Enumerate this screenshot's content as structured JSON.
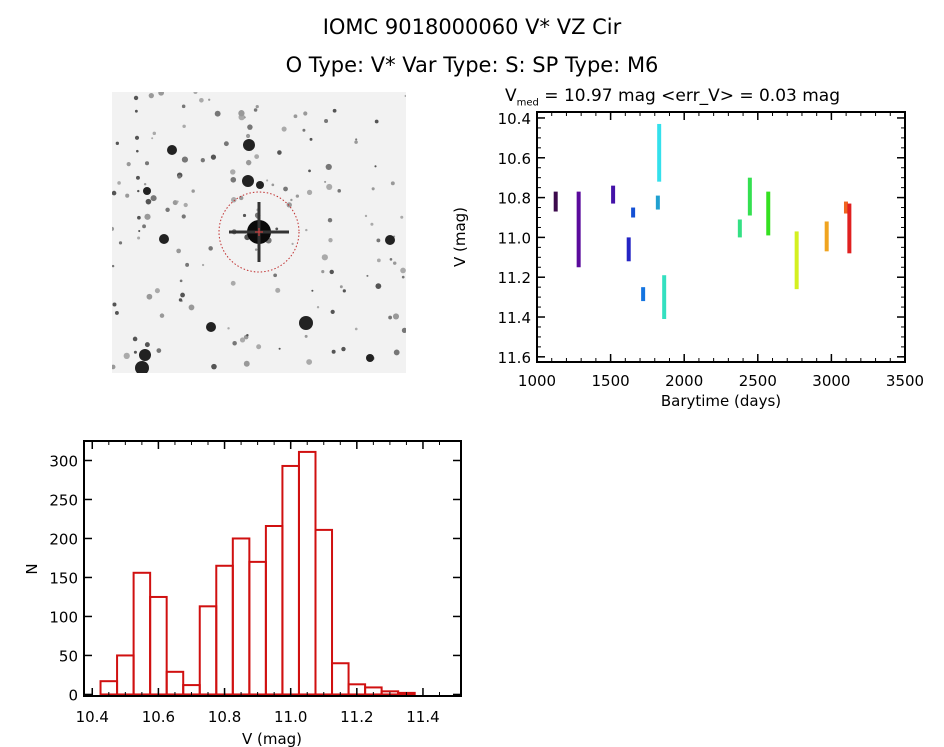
{
  "header": {
    "title": "IOMC 9018000060    V* VZ Cir",
    "subtitle": "O Type: V*  Var Type: S:  SP Type: M6"
  },
  "lightcurve_title": {
    "v": "V",
    "sub": "med",
    "rest": " = 10.97 mag <err_V> = 0.03 mag"
  },
  "chart_data": [
    {
      "type": "scatter",
      "title": "V_med = 10.97 mag <err_V> = 0.03 mag",
      "xlabel": "Barytime (days)",
      "ylabel": "V (mag)",
      "xlim": [
        1000,
        3500
      ],
      "ylim": [
        11.626,
        10.37
      ],
      "y_inverted": true,
      "xticks": [
        "1000",
        "1500",
        "2000",
        "2500",
        "3000",
        "3500"
      ],
      "yticks": [
        "10.4",
        "10.6",
        "10.8",
        "11.0",
        "11.2",
        "11.4",
        "11.6"
      ],
      "series": [
        {
          "x": 1127,
          "ymin": 10.77,
          "ymax": 10.87,
          "color": "#3c0a4c"
        },
        {
          "x": 1283,
          "ymin": 10.77,
          "ymax": 11.15,
          "color": "#5a0a9c"
        },
        {
          "x": 1517,
          "ymin": 10.74,
          "ymax": 10.83,
          "color": "#4412a8"
        },
        {
          "x": 1623,
          "ymin": 11.0,
          "ymax": 11.12,
          "color": "#2424c4"
        },
        {
          "x": 1653,
          "ymin": 10.85,
          "ymax": 10.9,
          "color": "#1450d4"
        },
        {
          "x": 1721,
          "ymin": 11.25,
          "ymax": 11.32,
          "color": "#1474e0"
        },
        {
          "x": 1821,
          "ymin": 10.79,
          "ymax": 10.86,
          "color": "#20a0d0"
        },
        {
          "x": 1830,
          "ymin": 10.43,
          "ymax": 10.72,
          "color": "#34e0ec"
        },
        {
          "x": 1864,
          "ymin": 11.19,
          "ymax": 11.41,
          "color": "#34e0c0"
        },
        {
          "x": 2378,
          "ymin": 10.91,
          "ymax": 11.0,
          "color": "#34e084"
        },
        {
          "x": 2446,
          "ymin": 10.7,
          "ymax": 10.89,
          "color": "#34e050"
        },
        {
          "x": 2571,
          "ymin": 10.77,
          "ymax": 10.99,
          "color": "#34e020"
        },
        {
          "x": 2764,
          "ymin": 10.97,
          "ymax": 11.26,
          "color": "#d4f020"
        },
        {
          "x": 2968,
          "ymin": 10.92,
          "ymax": 11.07,
          "color": "#f0a420"
        },
        {
          "x": 3099,
          "ymin": 10.82,
          "ymax": 10.88,
          "color": "#f06420"
        },
        {
          "x": 3122,
          "ymin": 10.83,
          "ymax": 11.08,
          "color": "#e02020"
        }
      ]
    },
    {
      "type": "bar",
      "title": "",
      "xlabel": "V (mag)",
      "ylabel": "N",
      "xlim": [
        10.375,
        11.515
      ],
      "ylim": [
        -2,
        325
      ],
      "bin_start": 10.425,
      "bin_width": 0.05,
      "values": [
        17,
        50,
        156,
        125,
        29,
        12,
        113,
        165,
        200,
        170,
        216,
        293,
        311,
        211,
        40,
        13,
        9,
        4,
        2
      ],
      "color": "#d01010",
      "xticks": [
        "10.4",
        "10.6",
        "10.8",
        "11.0",
        "11.2",
        "11.4"
      ],
      "yticks": [
        "0",
        "50",
        "100",
        "150",
        "200",
        "250",
        "300"
      ]
    }
  ]
}
